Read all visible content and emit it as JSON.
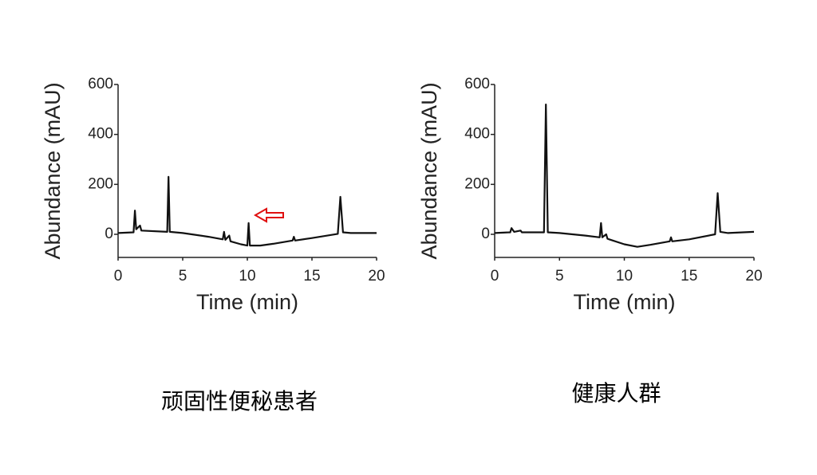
{
  "chart_data": [
    {
      "type": "line",
      "xlabel": "Time (min)",
      "ylabel": "Abundance (mAU)",
      "caption": "顽固性便秘患者",
      "xlim": [
        0,
        20
      ],
      "xticks": [
        0,
        5,
        10,
        15,
        20
      ],
      "ylim": [
        -100,
        600
      ],
      "yticks": [
        0,
        200,
        400,
        600
      ],
      "series": [
        {
          "color": "#111111",
          "x": [
            0,
            1.2,
            1.3,
            1.4,
            1.7,
            1.8,
            3.8,
            3.9,
            4.0,
            5,
            7,
            8.1,
            8.2,
            8.3,
            8.6,
            8.7,
            9.5,
            10,
            10.1,
            10.2,
            11,
            12,
            13.5,
            13.6,
            13.7,
            15,
            17,
            17.2,
            17.4,
            18,
            20
          ],
          "values": [
            5,
            8,
            95,
            20,
            35,
            15,
            10,
            230,
            10,
            5,
            -10,
            -20,
            10,
            -22,
            -5,
            -28,
            -40,
            -45,
            45,
            -45,
            -45,
            -38,
            -25,
            -10,
            -25,
            -15,
            2,
            150,
            8,
            5,
            5
          ]
        }
      ]
    },
    {
      "type": "line",
      "xlabel": "Time (min)",
      "ylabel": "Abundance (mAU)",
      "caption": "健康人群",
      "xlim": [
        0,
        20
      ],
      "xticks": [
        0,
        5,
        10,
        15,
        20
      ],
      "ylim": [
        -100,
        600
      ],
      "yticks": [
        0,
        200,
        400,
        600
      ],
      "series": [
        {
          "color": "#111111",
          "x": [
            0,
            1.2,
            1.3,
            1.5,
            2,
            2.1,
            3.8,
            3.95,
            4.1,
            5,
            7,
            8.1,
            8.2,
            8.3,
            8.6,
            8.7,
            10,
            11,
            12,
            13.5,
            13.6,
            13.7,
            15,
            17,
            17.2,
            17.4,
            18,
            20
          ],
          "values": [
            5,
            8,
            25,
            10,
            15,
            8,
            8,
            520,
            8,
            5,
            -5,
            -12,
            45,
            -12,
            0,
            -18,
            -40,
            -50,
            -42,
            -28,
            -12,
            -28,
            -20,
            0,
            165,
            10,
            5,
            10
          ]
        }
      ]
    }
  ]
}
